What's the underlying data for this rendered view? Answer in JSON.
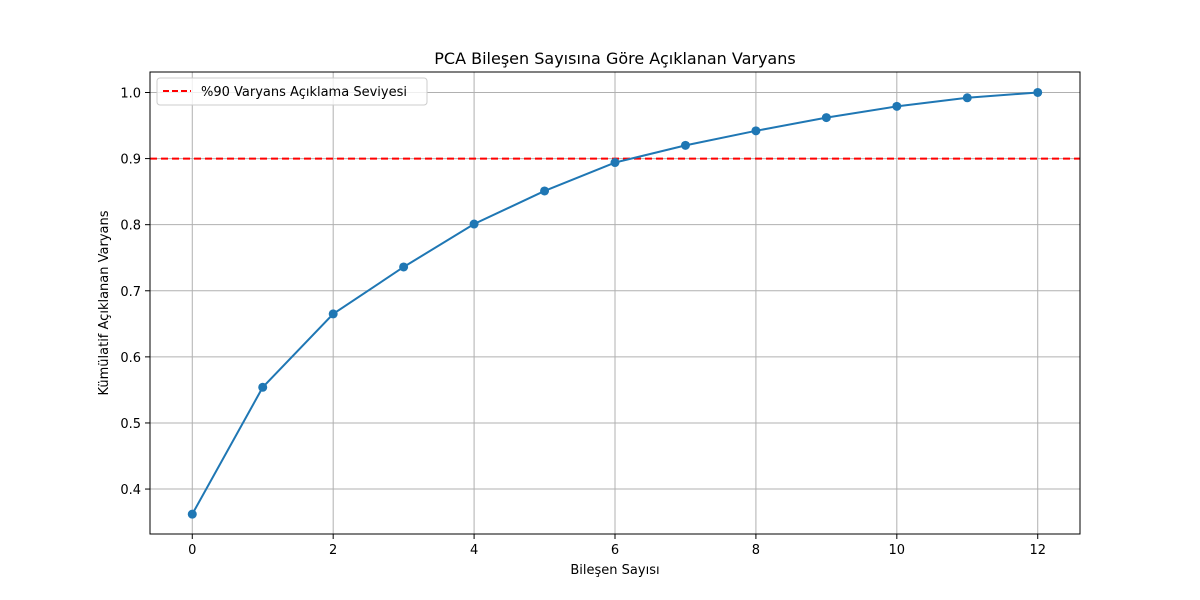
{
  "chart_data": {
    "type": "line",
    "title": "PCA Bileşen Sayısına Göre Açıklanan Varyans",
    "xlabel": "Bileşen Sayısı",
    "ylabel": "Kümülatif Açıklanan Varyans",
    "xlim": [
      -0.6,
      12.6
    ],
    "ylim": [
      0.332,
      1.031
    ],
    "xticks": [
      0,
      2,
      4,
      6,
      8,
      10,
      12
    ],
    "xtick_labels": [
      "0",
      "2",
      "4",
      "6",
      "8",
      "10",
      "12"
    ],
    "yticks": [
      0.4,
      0.5,
      0.6,
      0.7,
      0.8,
      0.9,
      1.0
    ],
    "ytick_labels": [
      "0.4",
      "0.5",
      "0.6",
      "0.7",
      "0.8",
      "0.9",
      "1.0"
    ],
    "grid": true,
    "legend_position": "top-left",
    "x": [
      0,
      1,
      2,
      3,
      4,
      5,
      6,
      7,
      8,
      9,
      10,
      11,
      12
    ],
    "series": [
      {
        "values": [
          0.362,
          0.554,
          0.665,
          0.736,
          0.801,
          0.851,
          0.894,
          0.92,
          0.942,
          0.962,
          0.979,
          0.992,
          1.0
        ],
        "color": "#1f77b4",
        "marker": "circle"
      }
    ],
    "reference_lines": [
      {
        "y": 0.9,
        "label": "%90 Varyans Açıklama Seviyesi",
        "color": "#ff0000",
        "style": "dashed"
      }
    ]
  }
}
